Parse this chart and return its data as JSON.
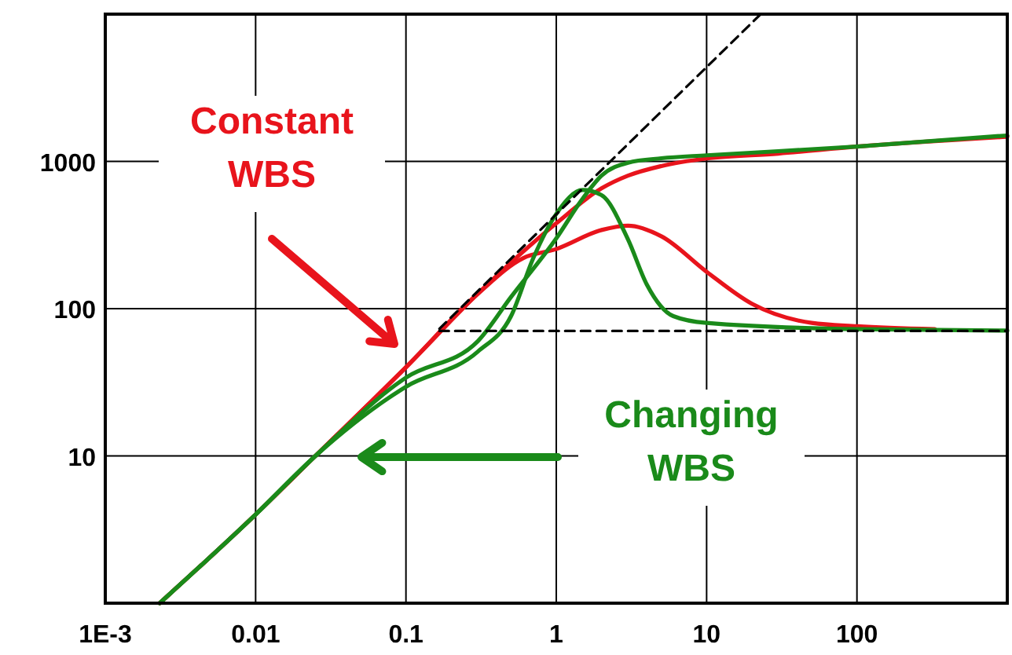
{
  "chart_data": {
    "type": "line",
    "log": "xy",
    "grid": true,
    "xlim": [
      0.001,
      1000
    ],
    "ylim": [
      1,
      10000
    ],
    "xticks": [
      {
        "value": 0.001,
        "label": "1E-3"
      },
      0.01,
      0.1,
      1,
      10,
      100
    ],
    "yticks": [
      10,
      100,
      1000
    ],
    "annotations": [
      "Constant WBS",
      "Changing WBS"
    ],
    "series": [
      {
        "color": "#e8141c",
        "x": [
          0.0023,
          0.01,
          0.025,
          0.1,
          0.3,
          1,
          2,
          3,
          5,
          10,
          30,
          100,
          1000
        ],
        "values": [
          1,
          4,
          10,
          40,
          126,
          380,
          656,
          800,
          930,
          1047,
          1130,
          1260,
          1470
        ]
      },
      {
        "color": "#e8141c",
        "x": [
          0.0023,
          0.01,
          0.025,
          0.1,
          0.3,
          0.6,
          1,
          2,
          3,
          5,
          10,
          20,
          50,
          100,
          330
        ],
        "values": [
          1,
          4,
          10,
          40,
          126,
          220,
          254,
          342,
          366,
          310,
          178,
          108,
          80,
          76,
          72.5
        ]
      },
      {
        "color": "#1a8a1a",
        "x": [
          0.0023,
          0.01,
          0.025,
          0.1,
          0.3,
          0.5,
          1,
          1.5,
          2,
          3,
          5,
          10,
          100,
          1000
        ],
        "values": [
          1,
          4,
          10,
          34,
          60,
          120,
          300,
          560,
          800,
          980,
          1050,
          1100,
          1260,
          1500
        ]
      },
      {
        "color": "#1a8a1a",
        "x": [
          0.0023,
          0.01,
          0.025,
          0.1,
          0.3,
          0.5,
          0.7,
          1,
          1.5,
          2,
          3,
          4,
          6,
          10,
          100,
          1000
        ],
        "values": [
          1,
          4,
          10,
          29.5,
          51,
          89,
          218,
          440,
          640,
          590,
          295,
          146,
          89,
          80,
          72.5,
          71
        ]
      },
      {
        "color": "#000000",
        "line_style": "dashed",
        "x": [
          0.167,
          22.9
        ],
        "values": [
          73,
          10000
        ]
      },
      {
        "color": "#000000",
        "line_style": "dashed",
        "x": [
          0.167,
          1000
        ],
        "values": [
          70.5,
          70.5
        ]
      }
    ]
  }
}
